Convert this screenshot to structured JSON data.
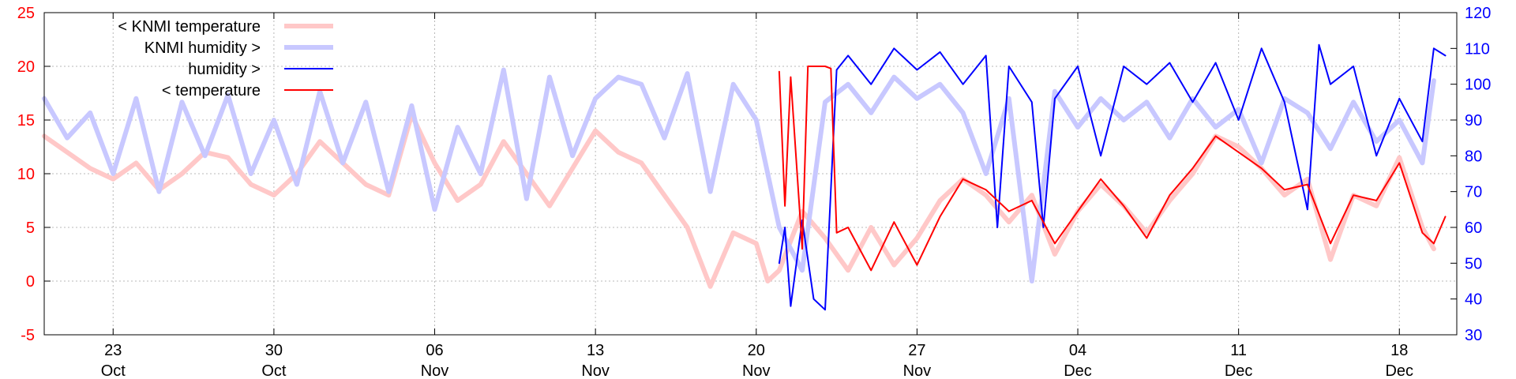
{
  "chart_data": {
    "type": "line",
    "x_axis": {
      "range": [
        "2025-10-20",
        "2025-12-20T12:00"
      ],
      "ticks": [
        {
          "date": "2025-10-23",
          "day": "23",
          "month": "Oct"
        },
        {
          "date": "2025-10-30",
          "day": "30",
          "month": "Oct"
        },
        {
          "date": "2025-11-06",
          "day": "06",
          "month": "Nov"
        },
        {
          "date": "2025-11-13",
          "day": "13",
          "month": "Nov"
        },
        {
          "date": "2025-11-20",
          "day": "20",
          "month": "Nov"
        },
        {
          "date": "2025-11-27",
          "day": "27",
          "month": "Nov"
        },
        {
          "date": "2025-12-04",
          "day": "04",
          "month": "Dec"
        },
        {
          "date": "2025-12-11",
          "day": "11",
          "month": "Dec"
        },
        {
          "date": "2025-12-18",
          "day": "18",
          "month": "Dec"
        }
      ]
    },
    "y_left": {
      "range": [
        -5,
        25
      ],
      "ticks": [
        "-5",
        "0",
        "5",
        "10",
        "15",
        "20",
        "25"
      ],
      "color": "#ff0000"
    },
    "y_right": {
      "range": [
        30,
        120
      ],
      "ticks": [
        "30",
        "40",
        "50",
        "60",
        "70",
        "80",
        "90",
        "100",
        "110",
        "120"
      ],
      "color": "#0000ff"
    },
    "grid": true,
    "legend_position": "top-left",
    "series": [
      {
        "name": "< KNMI temperature",
        "axis": "left",
        "color": "#ffc8c8",
        "style": "thick",
        "points": [
          [
            "2025-10-20",
            13.5
          ],
          [
            "2025-10-21",
            12.0
          ],
          [
            "2025-10-22",
            10.5
          ],
          [
            "2025-10-23",
            9.5
          ],
          [
            "2025-10-24",
            11.0
          ],
          [
            "2025-10-25",
            8.5
          ],
          [
            "2025-10-26",
            10.0
          ],
          [
            "2025-10-27",
            12.0
          ],
          [
            "2025-10-28",
            11.5
          ],
          [
            "2025-10-29",
            9.0
          ],
          [
            "2025-10-30",
            8.0
          ],
          [
            "2025-10-31",
            10.0
          ],
          [
            "2025-11-01",
            13.0
          ],
          [
            "2025-11-02",
            11.0
          ],
          [
            "2025-11-03",
            9.0
          ],
          [
            "2025-11-04",
            8.0
          ],
          [
            "2025-11-05",
            15.5
          ],
          [
            "2025-11-06",
            11.0
          ],
          [
            "2025-11-07",
            7.5
          ],
          [
            "2025-11-08",
            9.0
          ],
          [
            "2025-11-09",
            13.0
          ],
          [
            "2025-11-10",
            10.0
          ],
          [
            "2025-11-11",
            7.0
          ],
          [
            "2025-11-12",
            10.5
          ],
          [
            "2025-11-13",
            14.0
          ],
          [
            "2025-11-14",
            12.0
          ],
          [
            "2025-11-15",
            11.0
          ],
          [
            "2025-11-16",
            8.0
          ],
          [
            "2025-11-17",
            5.0
          ],
          [
            "2025-11-18",
            -0.5
          ],
          [
            "2025-11-19",
            4.5
          ],
          [
            "2025-11-20",
            3.5
          ],
          [
            "2025-11-20T12:00",
            0.0
          ],
          [
            "2025-11-21",
            1.0
          ],
          [
            "2025-11-22",
            6.5
          ],
          [
            "2025-11-23",
            4.0
          ],
          [
            "2025-11-24",
            1.0
          ],
          [
            "2025-11-25",
            5.0
          ],
          [
            "2025-11-26",
            1.5
          ],
          [
            "2025-11-27",
            4.0
          ],
          [
            "2025-11-28",
            7.5
          ],
          [
            "2025-11-29",
            9.5
          ],
          [
            "2025-11-30",
            8.0
          ],
          [
            "2025-12-01",
            5.5
          ],
          [
            "2025-12-02",
            8.0
          ],
          [
            "2025-12-03",
            2.5
          ],
          [
            "2025-12-04",
            6.5
          ],
          [
            "2025-12-05",
            9.0
          ],
          [
            "2025-12-06",
            7.0
          ],
          [
            "2025-12-07",
            4.5
          ],
          [
            "2025-12-08",
            7.5
          ],
          [
            "2025-12-09",
            10.0
          ],
          [
            "2025-12-10",
            13.5
          ],
          [
            "2025-12-11",
            12.5
          ],
          [
            "2025-12-12",
            10.5
          ],
          [
            "2025-12-13",
            8.0
          ],
          [
            "2025-12-14",
            9.5
          ],
          [
            "2025-12-15",
            2.0
          ],
          [
            "2025-12-16",
            8.0
          ],
          [
            "2025-12-17",
            7.0
          ],
          [
            "2025-12-18",
            11.5
          ],
          [
            "2025-12-19",
            5.0
          ],
          [
            "2025-12-19T12:00",
            3.0
          ]
        ]
      },
      {
        "name": "KNMI humidity >",
        "axis": "right",
        "color": "#c8c8ff",
        "style": "thick",
        "points": [
          [
            "2025-10-20",
            96
          ],
          [
            "2025-10-21",
            85
          ],
          [
            "2025-10-22",
            92
          ],
          [
            "2025-10-23",
            75
          ],
          [
            "2025-10-24",
            96
          ],
          [
            "2025-10-25",
            70
          ],
          [
            "2025-10-26",
            95
          ],
          [
            "2025-10-27",
            80
          ],
          [
            "2025-10-28",
            97
          ],
          [
            "2025-10-29",
            75
          ],
          [
            "2025-10-30",
            90
          ],
          [
            "2025-10-31",
            72
          ],
          [
            "2025-11-01",
            98
          ],
          [
            "2025-11-02",
            78
          ],
          [
            "2025-11-03",
            95
          ],
          [
            "2025-11-04",
            70
          ],
          [
            "2025-11-05",
            94
          ],
          [
            "2025-11-06",
            65
          ],
          [
            "2025-11-07",
            88
          ],
          [
            "2025-11-08",
            75
          ],
          [
            "2025-11-09",
            104
          ],
          [
            "2025-11-10",
            68
          ],
          [
            "2025-11-11",
            102
          ],
          [
            "2025-11-12",
            80
          ],
          [
            "2025-11-13",
            96
          ],
          [
            "2025-11-14",
            102
          ],
          [
            "2025-11-15",
            100
          ],
          [
            "2025-11-16",
            85
          ],
          [
            "2025-11-17",
            103
          ],
          [
            "2025-11-18",
            70
          ],
          [
            "2025-11-19",
            100
          ],
          [
            "2025-11-20",
            90
          ],
          [
            "2025-11-21",
            60
          ],
          [
            "2025-11-22",
            48
          ],
          [
            "2025-11-23",
            95
          ],
          [
            "2025-11-24",
            100
          ],
          [
            "2025-11-25",
            92
          ],
          [
            "2025-11-26",
            102
          ],
          [
            "2025-11-27",
            96
          ],
          [
            "2025-11-28",
            100
          ],
          [
            "2025-11-29",
            92
          ],
          [
            "2025-11-30",
            75
          ],
          [
            "2025-12-01",
            96
          ],
          [
            "2025-12-02",
            45
          ],
          [
            "2025-12-03",
            98
          ],
          [
            "2025-12-04",
            88
          ],
          [
            "2025-12-05",
            96
          ],
          [
            "2025-12-06",
            90
          ],
          [
            "2025-12-07",
            95
          ],
          [
            "2025-12-08",
            85
          ],
          [
            "2025-12-09",
            96
          ],
          [
            "2025-12-10",
            88
          ],
          [
            "2025-12-11",
            93
          ],
          [
            "2025-12-12",
            78
          ],
          [
            "2025-12-13",
            96
          ],
          [
            "2025-12-14",
            92
          ],
          [
            "2025-12-15",
            82
          ],
          [
            "2025-12-16",
            95
          ],
          [
            "2025-12-17",
            84
          ],
          [
            "2025-12-18",
            90
          ],
          [
            "2025-12-19",
            78
          ],
          [
            "2025-12-19T12:00",
            101
          ]
        ]
      },
      {
        "name": "humidity >",
        "axis": "right",
        "color": "#0000ff",
        "style": "thin",
        "points": [
          [
            "2025-11-21",
            50
          ],
          [
            "2025-11-21T06:00",
            60
          ],
          [
            "2025-11-21T12:00",
            38
          ],
          [
            "2025-11-22",
            62
          ],
          [
            "2025-11-22T12:00",
            40
          ],
          [
            "2025-11-23",
            37
          ],
          [
            "2025-11-23T12:00",
            104
          ],
          [
            "2025-11-24",
            108
          ],
          [
            "2025-11-25",
            100
          ],
          [
            "2025-11-26",
            110
          ],
          [
            "2025-11-27",
            104
          ],
          [
            "2025-11-28",
            109
          ],
          [
            "2025-11-29",
            100
          ],
          [
            "2025-11-30",
            108
          ],
          [
            "2025-11-30T12:00",
            60
          ],
          [
            "2025-12-01",
            105
          ],
          [
            "2025-12-02",
            95
          ],
          [
            "2025-12-02T12:00",
            60
          ],
          [
            "2025-12-03",
            96
          ],
          [
            "2025-12-04",
            105
          ],
          [
            "2025-12-05",
            80
          ],
          [
            "2025-12-06",
            105
          ],
          [
            "2025-12-07",
            100
          ],
          [
            "2025-12-08",
            106
          ],
          [
            "2025-12-09",
            95
          ],
          [
            "2025-12-10",
            106
          ],
          [
            "2025-12-11",
            90
          ],
          [
            "2025-12-12",
            110
          ],
          [
            "2025-12-13",
            95
          ],
          [
            "2025-12-14",
            65
          ],
          [
            "2025-12-14T12:00",
            111
          ],
          [
            "2025-12-15",
            100
          ],
          [
            "2025-12-16",
            105
          ],
          [
            "2025-12-17",
            80
          ],
          [
            "2025-12-18",
            96
          ],
          [
            "2025-12-19",
            84
          ],
          [
            "2025-12-19T12:00",
            110
          ],
          [
            "2025-12-20",
            108
          ]
        ]
      },
      {
        "name": "< temperature",
        "axis": "left",
        "color": "#ff0000",
        "style": "thin",
        "points": [
          [
            "2025-11-21",
            19.5
          ],
          [
            "2025-11-21T06:00",
            7.0
          ],
          [
            "2025-11-21T12:00",
            19.0
          ],
          [
            "2025-11-22",
            3.0
          ],
          [
            "2025-11-22T06:00",
            20.0
          ],
          [
            "2025-11-23",
            20.0
          ],
          [
            "2025-11-23T06:00",
            19.8
          ],
          [
            "2025-11-23T12:00",
            4.5
          ],
          [
            "2025-11-24",
            5.0
          ],
          [
            "2025-11-25",
            1.0
          ],
          [
            "2025-11-26",
            5.5
          ],
          [
            "2025-11-27",
            1.5
          ],
          [
            "2025-11-28",
            6.0
          ],
          [
            "2025-11-29",
            9.5
          ],
          [
            "2025-11-30",
            8.5
          ],
          [
            "2025-12-01",
            6.5
          ],
          [
            "2025-12-02",
            7.5
          ],
          [
            "2025-12-03",
            3.5
          ],
          [
            "2025-12-04",
            6.5
          ],
          [
            "2025-12-05",
            9.5
          ],
          [
            "2025-12-06",
            7.0
          ],
          [
            "2025-12-07",
            4.0
          ],
          [
            "2025-12-08",
            8.0
          ],
          [
            "2025-12-09",
            10.5
          ],
          [
            "2025-12-10",
            13.5
          ],
          [
            "2025-12-11",
            12.0
          ],
          [
            "2025-12-12",
            10.5
          ],
          [
            "2025-12-13",
            8.5
          ],
          [
            "2025-12-14",
            9.0
          ],
          [
            "2025-12-15",
            3.5
          ],
          [
            "2025-12-16",
            8.0
          ],
          [
            "2025-12-17",
            7.5
          ],
          [
            "2025-12-18",
            11.0
          ],
          [
            "2025-12-19",
            4.5
          ],
          [
            "2025-12-19T12:00",
            3.5
          ],
          [
            "2025-12-20",
            6.0
          ]
        ]
      }
    ]
  }
}
